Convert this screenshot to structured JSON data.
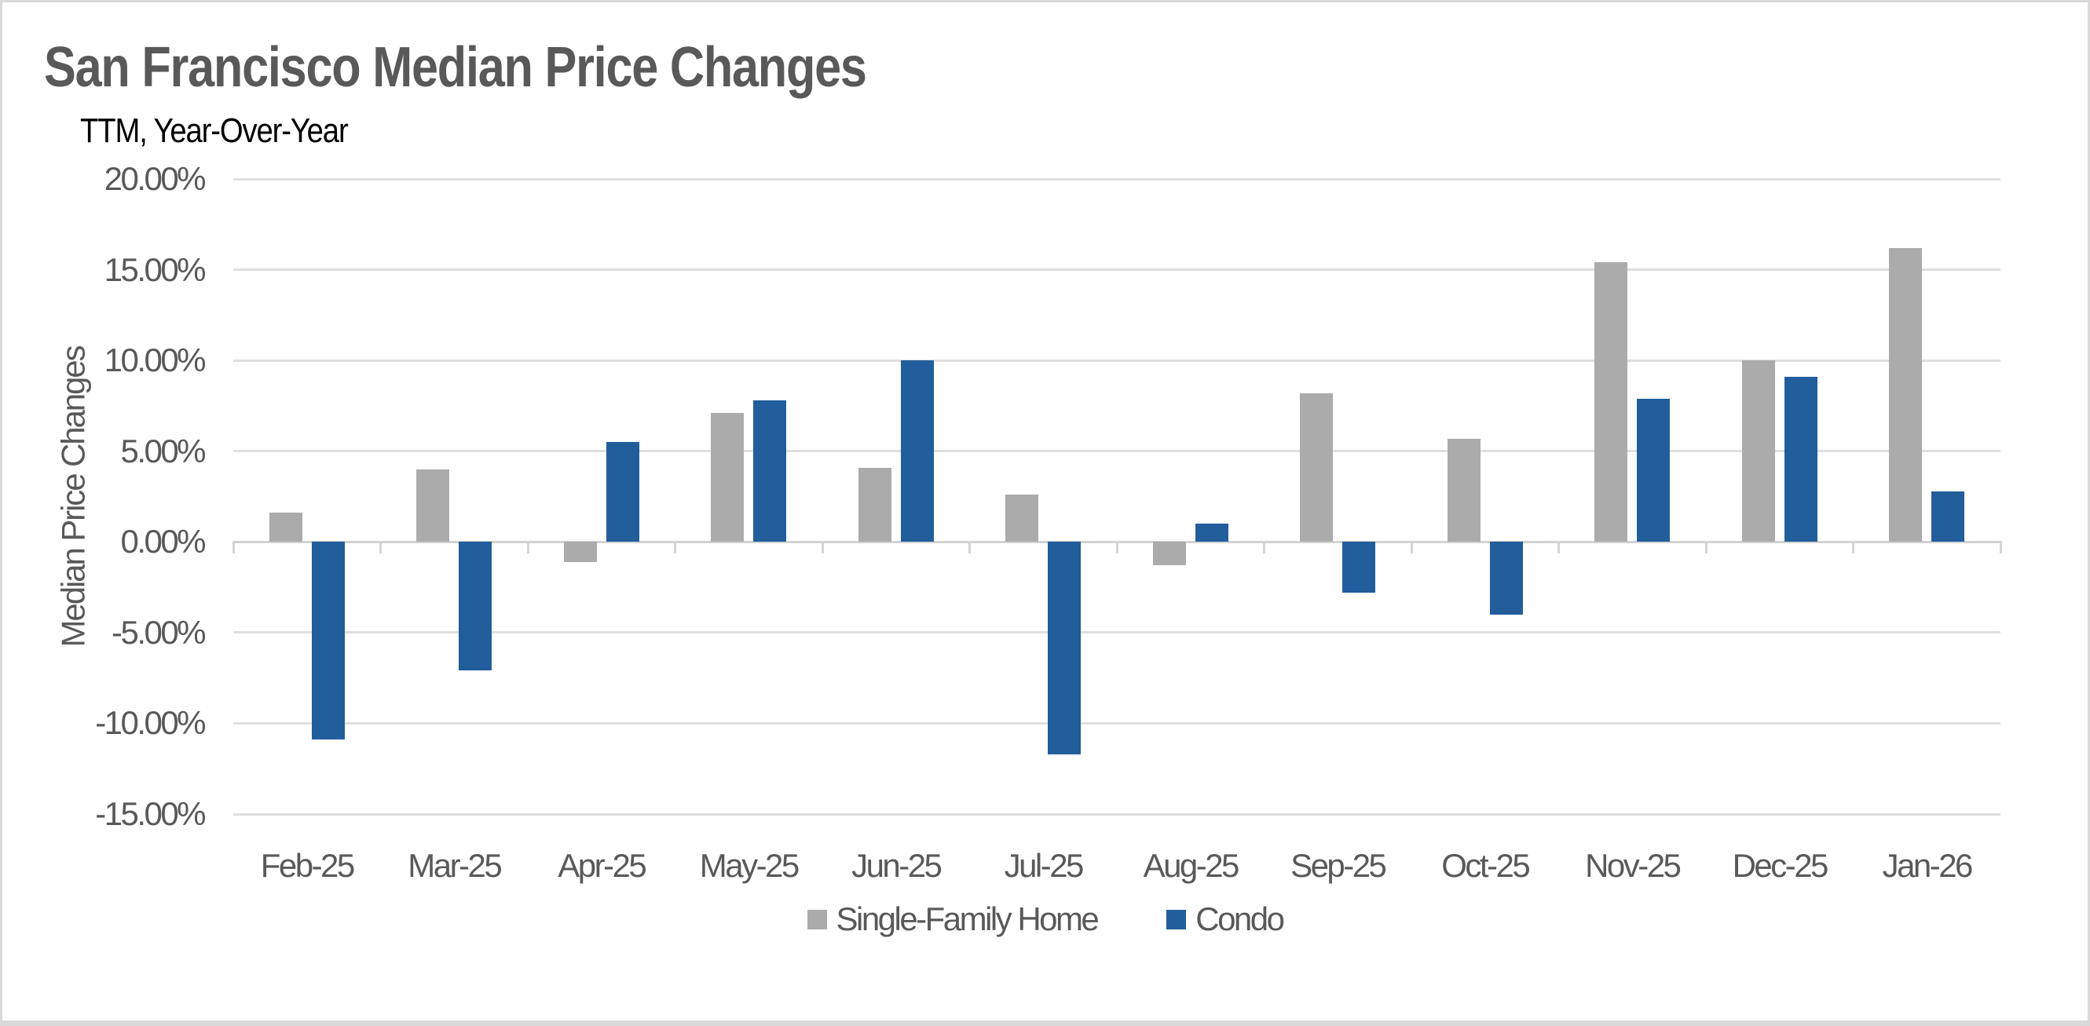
{
  "chart_data": {
    "type": "bar",
    "title": "San Francisco Median Price Changes",
    "subtitle": "TTM, Year-Over-Year",
    "ylabel": "Median Price Changes",
    "xlabel": "",
    "unit": "%",
    "categories": [
      "Feb-25",
      "Mar-25",
      "Apr-25",
      "May-25",
      "Jun-25",
      "Jul-25",
      "Aug-25",
      "Sep-25",
      "Oct-25",
      "Nov-25",
      "Dec-25",
      "Jan-26"
    ],
    "series": [
      {
        "name": "Single-Family Home",
        "color": "#ABABAB",
        "values": [
          1.6,
          4.0,
          -1.1,
          7.1,
          4.1,
          2.6,
          -1.3,
          8.2,
          5.7,
          15.4,
          10.0,
          16.2
        ]
      },
      {
        "name": "Condo",
        "color": "#215E9B",
        "values": [
          -10.9,
          -7.1,
          5.5,
          7.8,
          10.0,
          -11.7,
          1.0,
          -2.8,
          -4.0,
          7.9,
          9.1,
          2.8
        ]
      }
    ],
    "y_tick_labels": [
      "20.00%",
      "15.00%",
      "10.00%",
      "5.00%",
      "0.00%",
      "-5.00%",
      "-10.00%",
      "-15.00%"
    ],
    "ylim": [
      -15,
      20
    ],
    "grid": "horizontal",
    "gridline_color": "#DFDFDF",
    "axis_line_color": "#D2D2D2",
    "text_color": "#595959",
    "legend_position": "bottom"
  }
}
